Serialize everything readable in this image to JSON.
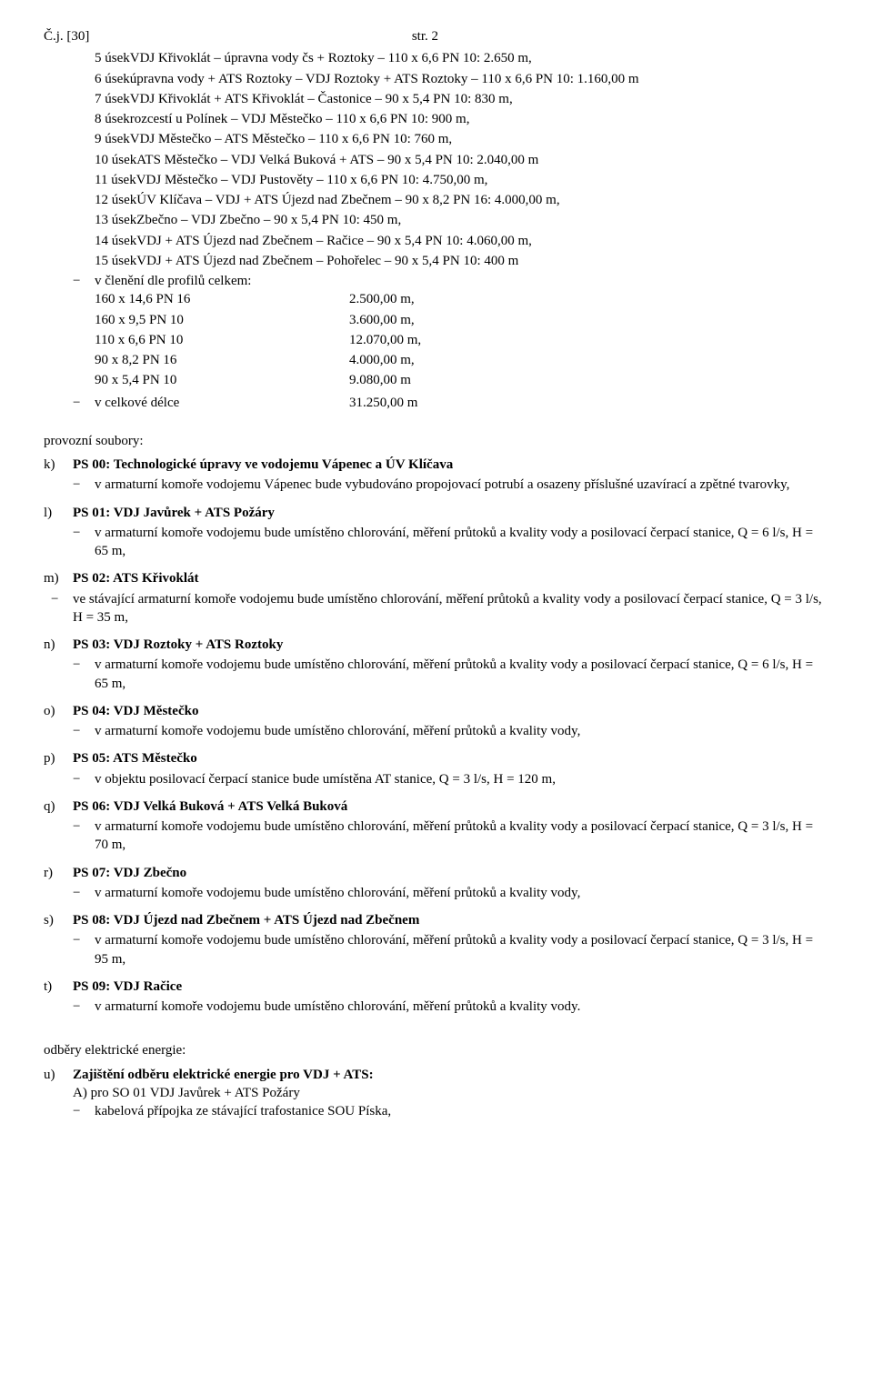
{
  "header": {
    "left": "Č.j. [30]",
    "right": "str. 2"
  },
  "useky": [
    "5 úsekVDJ Křivoklát – úpravna vody čs + Roztoky – 110 x 6,6 PN 10: 2.650 m,",
    "6 úsekúpravna vody + ATS Roztoky – VDJ Roztoky + ATS Roztoky – 110 x 6,6 PN 10: 1.160,00 m",
    "7 úsekVDJ Křivoklát + ATS Křivoklát – Častonice – 90 x 5,4 PN 10: 830 m,",
    "8 úsekrozcestí u Polínek – VDJ Městečko – 110 x 6,6 PN 10: 900 m,",
    "9 úsekVDJ Městečko – ATS Městečko – 110 x 6,6 PN 10: 760 m,",
    "10 úsekATS Městečko – VDJ Velká Buková + ATS – 90 x 5,4 PN 10: 2.040,00 m",
    "11 úsekVDJ Městečko – VDJ Pustověty – 110 x 6,6 PN 10: 4.750,00 m,",
    "12 úsekÚV Klíčava – VDJ + ATS Újezd nad Zbečnem – 90 x 8,2 PN 16: 4.000,00 m,",
    "13 úsekZbečno – VDJ Zbečno – 90 x 5,4 PN 10: 450 m,",
    "14 úsekVDJ + ATS Újezd nad Zbečnem – Račice – 90 x 5,4 PN 10: 4.060,00 m,",
    "15 úsekVDJ + ATS Újezd nad Zbečnem – Pohořelec – 90 x 5,4 PN 10: 400 m"
  ],
  "profily_heading": "v členění dle profilů celkem:",
  "profily": [
    {
      "label": "160 x 14,6 PN 16",
      "value": "2.500,00 m,"
    },
    {
      "label": "160 x 9,5 PN 10",
      "value": "3.600,00 m,"
    },
    {
      "label": "110 x 6,6 PN 10",
      "value": "12.070,00 m,"
    },
    {
      "label": "90 x 8,2 PN 16",
      "value": "4.000,00 m,"
    },
    {
      "label": "90 x 5,4 PN 10",
      "value": "9.080,00 m"
    }
  ],
  "total": {
    "label": "v celkové délce",
    "value": "31.250,00 m"
  },
  "provozni_heading": "provozní soubory:",
  "ps": [
    {
      "letter": "k)",
      "title": "PS 00: Technologické úpravy ve vodojemu Vápenec a ÚV Klíčava",
      "body": "v armaturní komoře vodojemu Vápenec bude vybudováno propojovací potrubí a osazeny příslušné uzavírací a zpětné tvarovky,"
    },
    {
      "letter": "l)",
      "title": "PS 01: VDJ Javůrek + ATS Požáry",
      "body": "v armaturní komoře vodojemu bude umístěno chlorování, měření průtoků a kvality vody a posilovací čerpací stanice, Q = 6 l/s, H = 65 m,"
    },
    {
      "letter": "m)",
      "title": "PS 02: ATS Křivoklát",
      "body": "ve stávající armaturní komoře vodojemu bude umístěno chlorování, měření průtoků a kvality vody a posilovací čerpací stanice, Q = 3 l/s, H = 35 m,"
    },
    {
      "letter": "n)",
      "title": "PS 03: VDJ Roztoky + ATS Roztoky",
      "body": "v armaturní komoře vodojemu bude umístěno chlorování, měření průtoků a kvality vody a posilovací čerpací stanice, Q = 6 l/s, H = 65 m,"
    },
    {
      "letter": "o)",
      "title": "PS 04: VDJ Městečko",
      "body": "v armaturní komoře vodojemu bude umístěno chlorování, měření průtoků a kvality vody,"
    },
    {
      "letter": "p)",
      "title": "PS 05: ATS Městečko",
      "body": "v objektu posilovací čerpací stanice bude umístěna AT stanice, Q = 3 l/s, H = 120 m,"
    },
    {
      "letter": "q)",
      "title": "PS 06: VDJ Velká Buková + ATS Velká Buková",
      "body": "v armaturní komoře vodojemu bude umístěno chlorování, měření průtoků a kvality vody a posilovací čerpací stanice, Q = 3 l/s, H = 70 m,"
    },
    {
      "letter": "r)",
      "title": "PS 07: VDJ Zbečno",
      "body": "v armaturní komoře vodojemu bude umístěno chlorování, měření průtoků a kvality vody,"
    },
    {
      "letter": "s)",
      "title": "PS 08: VDJ Újezd nad Zbečnem + ATS Újezd nad Zbečnem",
      "body": "v armaturní komoře vodojemu bude umístěno chlorování, měření průtoků a kvality vody a posilovací čerpací stanice, Q = 3 l/s, H = 95 m,"
    },
    {
      "letter": "t)",
      "title": "PS 09: VDJ Račice",
      "body": "v armaturní komoře vodojemu bude umístěno chlorování, měření průtoků a kvality vody."
    }
  ],
  "odbery_heading": "odběry elektrické energie:",
  "odbery": {
    "letter": "u)",
    "title": "Zajištění odběru elektrické energie pro VDJ + ATS:",
    "sub1": "A) pro SO 01 VDJ Javůrek + ATS Požáry",
    "sub2": "kabelová přípojka ze stávající trafostanice SOU Píska,"
  },
  "profily_col_width": 280,
  "fontsize": 15
}
